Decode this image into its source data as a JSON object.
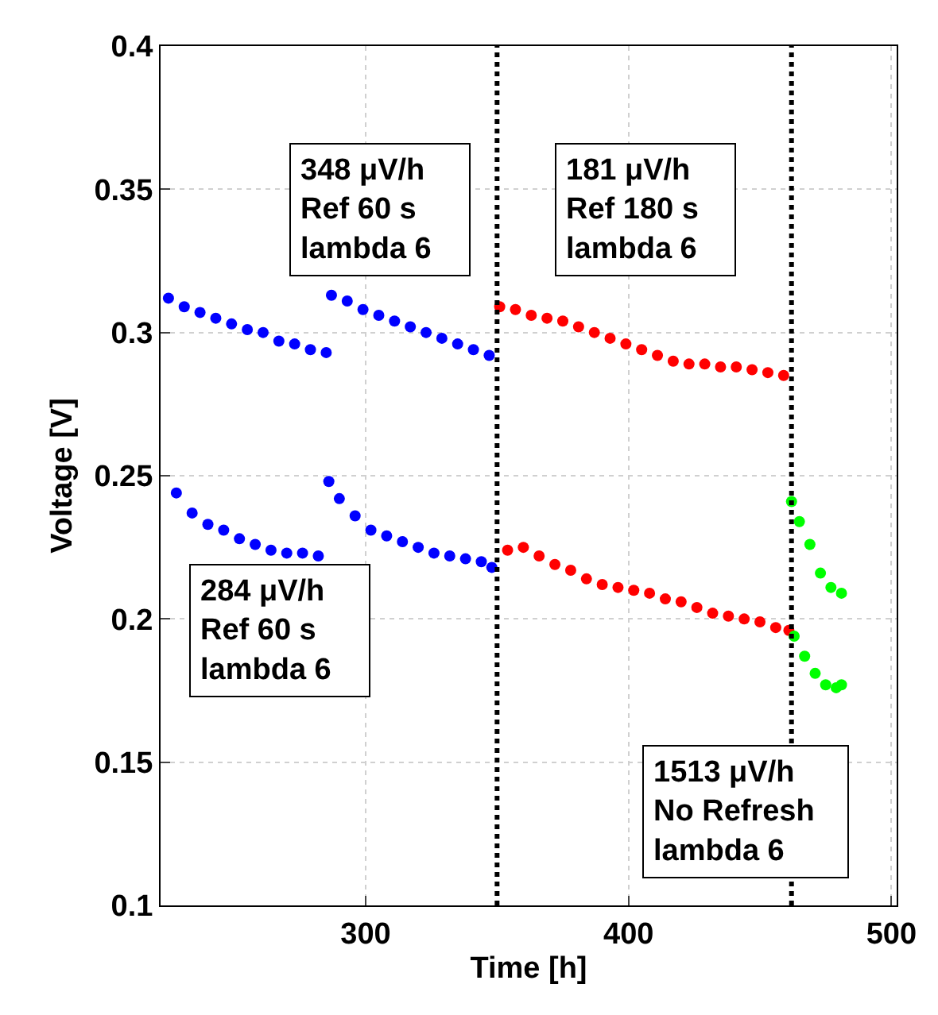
{
  "chart_data": {
    "type": "scatter",
    "xlabel": "Time [h]",
    "ylabel": "Voltage [V]",
    "xlim": [
      222,
      502
    ],
    "xticks": [
      300,
      400,
      500
    ],
    "ylim": [
      0.1,
      0.4
    ],
    "yticks": [
      0.1,
      0.15,
      0.2,
      0.25,
      0.3,
      0.35,
      0.4
    ],
    "grid": true,
    "marker": "circle",
    "ref_lines": [
      {
        "axis": "x",
        "value": 350,
        "color": "#000000",
        "line_style": "dotted"
      },
      {
        "axis": "x",
        "value": 462,
        "color": "#000000",
        "line_style": "dotted"
      }
    ],
    "annotations": [
      "348 μV/h\nRef 60 s\nlambda 6",
      "181 μV/h\nRef 180 s\nlambda 6",
      "284 μV/h\nRef 60 s\nlambda 6",
      "1513 μV/h\nNo Refresh\nlambda 6"
    ],
    "series": [
      {
        "color": "#0000ff",
        "x": [
          225,
          228,
          231,
          234,
          237,
          240,
          243,
          246,
          249,
          252,
          255,
          258,
          261,
          264,
          267,
          270,
          273,
          276,
          279,
          282,
          285,
          286,
          287,
          290,
          293,
          296,
          299,
          302,
          305,
          308,
          311,
          314,
          317,
          320,
          323,
          326,
          329,
          332,
          335,
          338,
          341,
          344,
          347,
          348
        ],
        "values": [
          0.312,
          0.244,
          0.309,
          0.237,
          0.307,
          0.233,
          0.305,
          0.231,
          0.303,
          0.228,
          0.301,
          0.226,
          0.3,
          0.224,
          0.297,
          0.223,
          0.296,
          0.223,
          0.294,
          0.222,
          0.293,
          0.248,
          0.313,
          0.242,
          0.311,
          0.236,
          0.308,
          0.231,
          0.306,
          0.229,
          0.304,
          0.227,
          0.302,
          0.225,
          0.3,
          0.223,
          0.298,
          0.222,
          0.296,
          0.221,
          0.294,
          0.22,
          0.292,
          0.218
        ]
      },
      {
        "color": "#ff0000",
        "x": [
          351,
          354,
          357,
          360,
          363,
          366,
          369,
          372,
          375,
          378,
          381,
          384,
          387,
          390,
          393,
          396,
          399,
          402,
          405,
          408,
          411,
          414,
          417,
          420,
          423,
          426,
          429,
          432,
          435,
          438,
          441,
          444,
          447,
          450,
          453,
          456,
          459,
          461
        ],
        "values": [
          0.309,
          0.224,
          0.308,
          0.225,
          0.306,
          0.222,
          0.305,
          0.219,
          0.304,
          0.217,
          0.302,
          0.214,
          0.3,
          0.212,
          0.298,
          0.211,
          0.296,
          0.21,
          0.294,
          0.209,
          0.292,
          0.207,
          0.29,
          0.206,
          0.289,
          0.204,
          0.289,
          0.202,
          0.288,
          0.201,
          0.288,
          0.2,
          0.287,
          0.199,
          0.286,
          0.197,
          0.285,
          0.196
        ]
      },
      {
        "color": "#00ff00",
        "x": [
          462,
          463,
          465,
          467,
          469,
          471,
          473,
          475,
          477,
          479,
          481,
          481
        ],
        "values": [
          0.241,
          0.194,
          0.234,
          0.187,
          0.226,
          0.181,
          0.216,
          0.177,
          0.211,
          0.176,
          0.209,
          0.177
        ]
      }
    ]
  }
}
